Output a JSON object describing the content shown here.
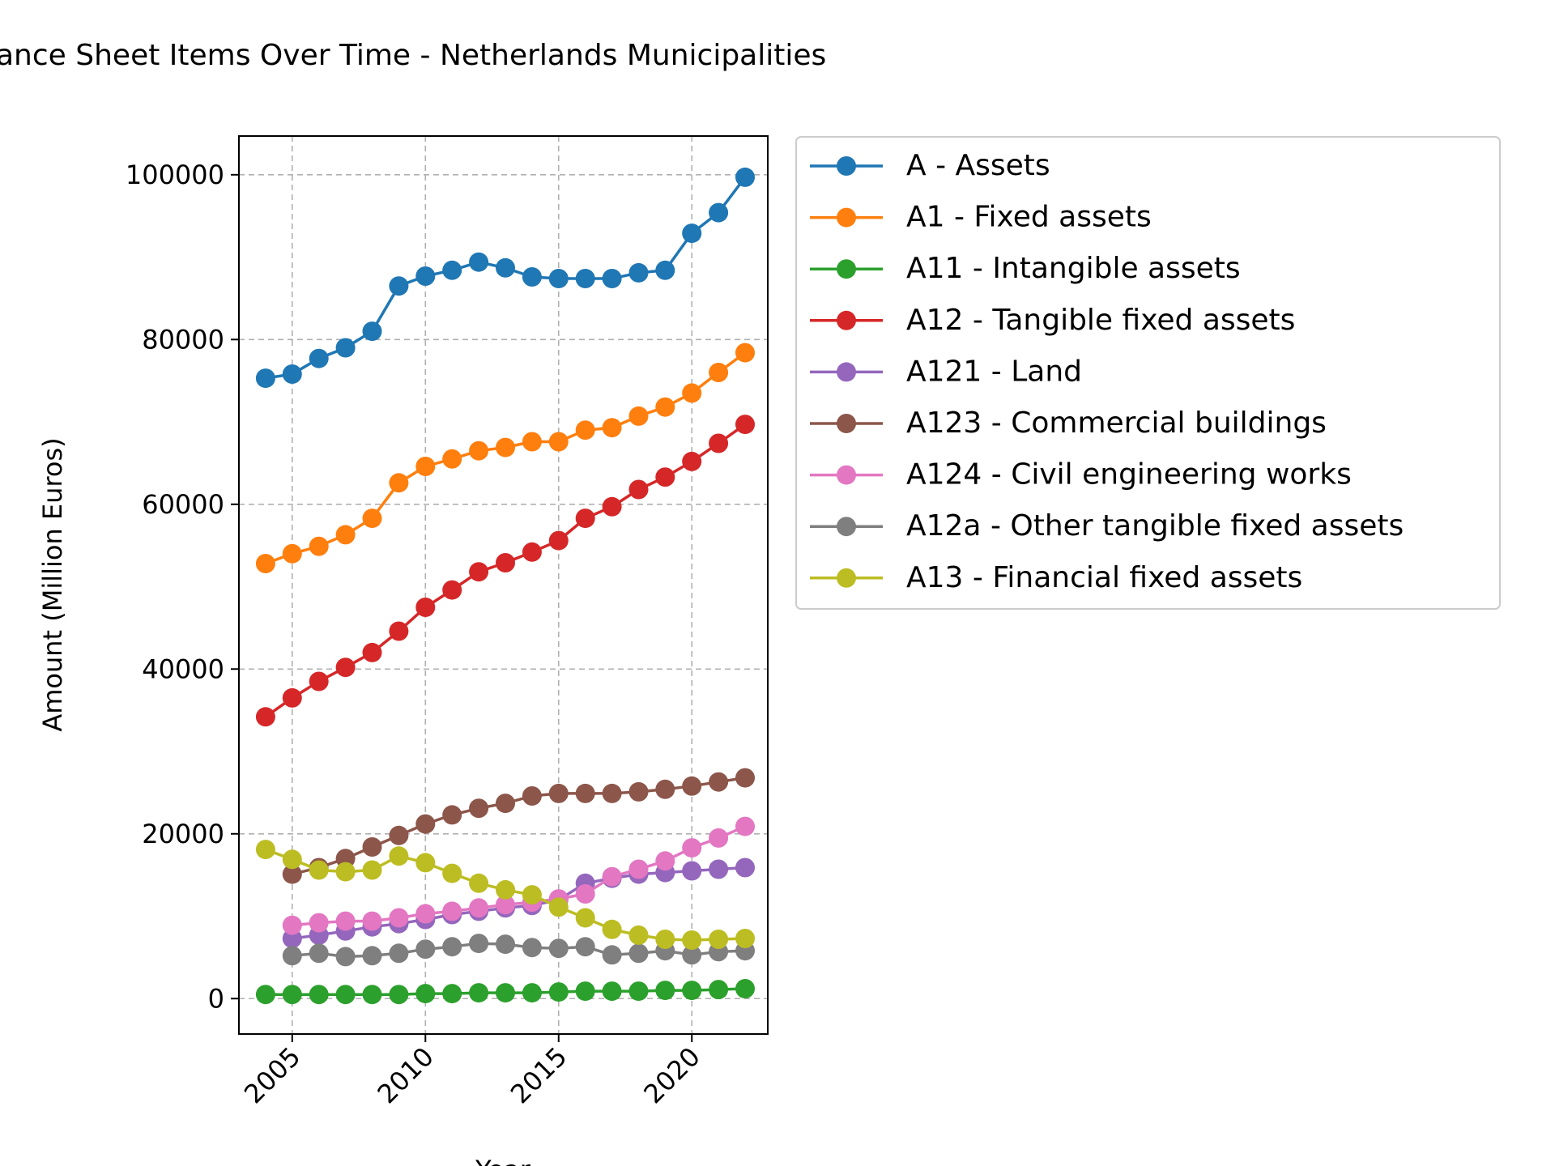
{
  "chart_data": {
    "type": "line",
    "title": "ance Sheet Items Over Time - Netherlands Municipalities",
    "xlabel": "Year",
    "ylabel": "Amount (Million Euros)",
    "xlim": [
      2003.0,
      2022.85
    ],
    "ylim": [
      -4300,
      104700
    ],
    "xticks": [
      2005,
      2010,
      2015,
      2020
    ],
    "yticks": [
      0,
      20000,
      40000,
      60000,
      80000,
      100000
    ],
    "grid": true,
    "legend_position": "outside-top-right",
    "x": [
      2004,
      2005,
      2006,
      2007,
      2008,
      2009,
      2010,
      2011,
      2012,
      2013,
      2014,
      2015,
      2016,
      2017,
      2018,
      2019,
      2020,
      2021,
      2022
    ],
    "series": [
      {
        "name": "A - Assets",
        "color": "#1f77b4",
        "values": [
          75300,
          75800,
          77700,
          79000,
          81000,
          86500,
          87700,
          88400,
          89400,
          88700,
          87600,
          87400,
          87400,
          87400,
          88100,
          88400,
          92900,
          95400,
          99700
        ]
      },
      {
        "name": "A1 - Fixed assets",
        "color": "#ff7f0e",
        "values": [
          52800,
          54000,
          54900,
          56300,
          58300,
          62600,
          64600,
          65500,
          66500,
          66900,
          67600,
          67600,
          69000,
          69300,
          70700,
          71800,
          73500,
          76000,
          78400
        ]
      },
      {
        "name": "A11 - Intangible assets",
        "color": "#2ca02c",
        "values": [
          500,
          500,
          500,
          500,
          500,
          500,
          600,
          600,
          700,
          700,
          700,
          800,
          900,
          900,
          900,
          1000,
          1000,
          1100,
          1200
        ]
      },
      {
        "name": "A12 - Tangible fixed assets",
        "color": "#d62728",
        "values": [
          34200,
          36500,
          38500,
          40200,
          42000,
          44600,
          47500,
          49600,
          51800,
          52900,
          54200,
          55600,
          58300,
          59700,
          61800,
          63300,
          65200,
          67400,
          69700
        ]
      },
      {
        "name": "A121 - Land",
        "color": "#9467bd",
        "values": [
          null,
          7300,
          7700,
          8200,
          8700,
          9100,
          9600,
          10200,
          10600,
          11000,
          11300,
          12000,
          14000,
          14600,
          15100,
          15300,
          15500,
          15700,
          15900
        ]
      },
      {
        "name": "A123 - Commercial buildings",
        "color": "#8c564b",
        "values": [
          null,
          15100,
          15900,
          17000,
          18400,
          19800,
          21200,
          22300,
          23100,
          23700,
          24600,
          24900,
          24900,
          24900,
          25100,
          25400,
          25800,
          26300,
          26800
        ]
      },
      {
        "name": "A124 - Civil engineering works",
        "color": "#e377c2",
        "values": [
          null,
          8900,
          9200,
          9400,
          9400,
          9800,
          10300,
          10600,
          11000,
          11400,
          11700,
          12100,
          12700,
          14800,
          15700,
          16700,
          18300,
          19500,
          20900
        ]
      },
      {
        "name": "A12a - Other tangible fixed assets",
        "color": "#7f7f7f",
        "values": [
          null,
          5200,
          5500,
          5100,
          5200,
          5500,
          6000,
          6300,
          6700,
          6600,
          6200,
          6100,
          6300,
          5300,
          5500,
          5800,
          5300,
          5700,
          5800
        ]
      },
      {
        "name": "A13 - Financial fixed assets",
        "color": "#bcbd22",
        "values": [
          18100,
          16900,
          15600,
          15400,
          15600,
          17300,
          16500,
          15200,
          14000,
          13200,
          12600,
          11100,
          9800,
          8400,
          7700,
          7200,
          7100,
          7200,
          7300
        ]
      }
    ]
  }
}
